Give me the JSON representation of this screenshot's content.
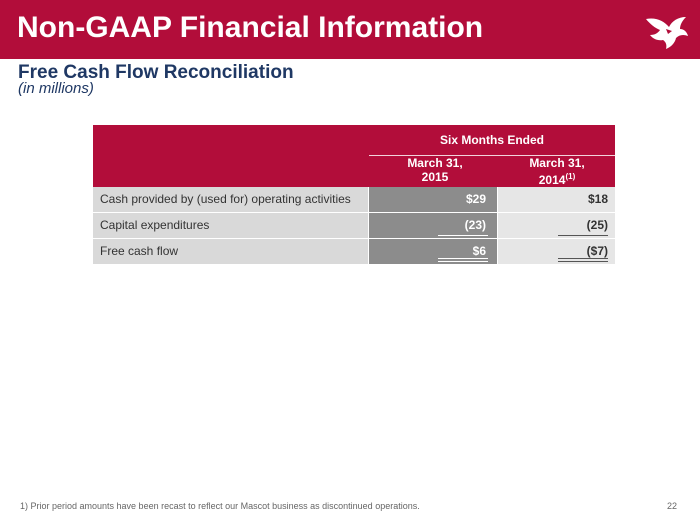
{
  "header": {
    "title": "Non-GAAP Financial Information",
    "brand_color": "#b20d3a",
    "logo_icon": "bird-logo-icon"
  },
  "section": {
    "subtitle": "Free Cash Flow Reconciliation",
    "units": "(in millions)"
  },
  "table": {
    "group_header": "Six Months Ended",
    "columns": [
      {
        "line1": "March 31,",
        "line2": "2015",
        "footnote_marker": ""
      },
      {
        "line1": "March 31,",
        "line2": "2014",
        "footnote_marker": "(1)"
      }
    ],
    "rows": [
      {
        "label": "Cash provided by (used for) operating activities",
        "values": [
          "$29",
          "$18"
        ]
      },
      {
        "label": "Capital expenditures",
        "values": [
          "(23)",
          "(25)"
        ]
      },
      {
        "label": "Free cash flow",
        "values": [
          "$6",
          "($7)"
        ]
      }
    ]
  },
  "footer": {
    "footnote": "1)  Prior period amounts have been recast to reflect our Mascot business as discontinued operations.",
    "page_number": "22"
  }
}
